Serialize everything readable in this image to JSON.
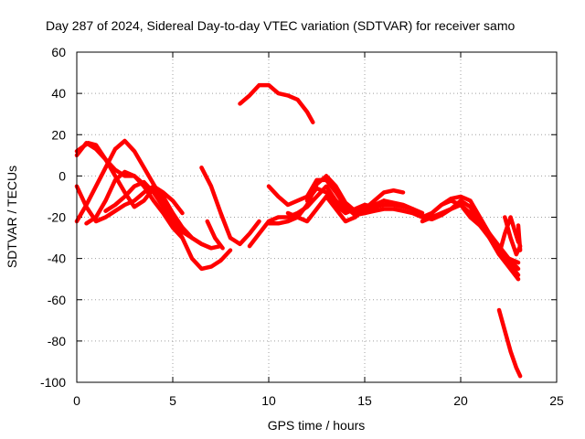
{
  "chart_data": {
    "type": "line",
    "title": "Day 287 of 2024, Sidereal Day-to-day VTEC variation (SDTVAR) for receiver samo",
    "xlabel": "GPS time / hours",
    "ylabel": "SDTVAR / TECUs",
    "xlim": [
      0,
      25
    ],
    "ylim": [
      -100,
      60
    ],
    "xticks": [
      0,
      5,
      10,
      15,
      20,
      25
    ],
    "yticks": [
      -100,
      -80,
      -60,
      -40,
      -20,
      0,
      20,
      40,
      60
    ],
    "xtick_labels": [
      "0",
      "5",
      "10",
      "15",
      "20",
      "25"
    ],
    "ytick_labels": [
      "-100",
      "-80",
      "-60",
      "-40",
      "-20",
      "0",
      "20",
      "40",
      "60"
    ],
    "grid": true,
    "color": "#ff0000",
    "series": [
      {
        "name": "track-1",
        "x": [
          0.0,
          0.5,
          1.0,
          1.5,
          2.0,
          2.5,
          3.0,
          3.5,
          4.0,
          4.5,
          5.0,
          5.5,
          6.0,
          6.5,
          7.0,
          7.5,
          8.0
        ],
        "y": [
          10,
          16,
          13,
          8,
          3,
          0,
          0,
          -4,
          -8,
          -14,
          -22,
          -30,
          -40,
          -45,
          -44,
          -41,
          -36
        ]
      },
      {
        "name": "track-2",
        "x": [
          0.0,
          0.5,
          1.0,
          1.5,
          2.0,
          2.5,
          3.0,
          3.5,
          4.0,
          4.5,
          5.0,
          5.5,
          6.0,
          6.5,
          7.0,
          7.5
        ],
        "y": [
          -22,
          -14,
          -5,
          4,
          13,
          17,
          12,
          4,
          -4,
          -12,
          -20,
          -25,
          -30,
          -33,
          -35,
          -34
        ]
      },
      {
        "name": "track-3",
        "x": [
          0.0,
          0.3,
          0.6,
          1.0,
          1.5,
          2.0,
          2.5,
          3.0,
          3.5,
          4.0,
          4.5,
          5.0,
          5.5,
          6.0,
          6.5,
          7.0
        ],
        "y": [
          12,
          14,
          16,
          15,
          8,
          0,
          -8,
          -15,
          -12,
          -6,
          -10,
          -18,
          -25,
          -30,
          -33,
          -35
        ]
      },
      {
        "name": "track-4",
        "x": [
          0.0,
          0.5,
          1.0,
          1.5,
          2.0,
          2.5,
          3.0,
          3.5,
          4.0,
          4.5,
          5.0,
          5.5
        ],
        "y": [
          -5,
          -15,
          -22,
          -20,
          -17,
          -14,
          -12,
          -8,
          -5,
          -8,
          -12,
          -18
        ]
      },
      {
        "name": "track-5",
        "x": [
          0.5,
          1.0,
          1.5,
          2.0,
          2.5,
          3.0,
          3.5,
          4.0,
          4.5,
          5.0,
          5.5
        ],
        "y": [
          -23,
          -20,
          -12,
          -2,
          2,
          0,
          -5,
          -12,
          -18,
          -25,
          -30
        ]
      },
      {
        "name": "track-6",
        "x": [
          1.5,
          2.0,
          2.5,
          3.0,
          3.5,
          4.0,
          4.5,
          5.0,
          5.5,
          6.0
        ],
        "y": [
          -17,
          -14,
          -10,
          -5,
          -3,
          -8,
          -15,
          -22,
          -27,
          -30
        ]
      },
      {
        "name": "track-7",
        "x": [
          6.5,
          7.0,
          7.5,
          8.0,
          8.5,
          9.0,
          9.5
        ],
        "y": [
          4,
          -5,
          -18,
          -30,
          -33,
          -28,
          -22
        ]
      },
      {
        "name": "track-8",
        "x": [
          6.8,
          7.2,
          7.6
        ],
        "y": [
          -22,
          -30,
          -35
        ]
      },
      {
        "name": "track-9",
        "x": [
          8.5,
          9.0,
          9.5,
          10.0,
          10.5,
          11.0,
          11.5,
          12.0,
          12.3
        ],
        "y": [
          35,
          39,
          44,
          44,
          40,
          39,
          37,
          31,
          26
        ]
      },
      {
        "name": "track-10",
        "x": [
          9.0,
          9.5,
          10.0,
          10.5,
          11.0,
          11.5,
          12.0,
          12.5,
          13.0,
          13.5,
          14.0,
          14.5,
          15.0,
          15.5,
          16.0,
          16.5,
          17.0,
          17.5,
          18.0
        ],
        "y": [
          -34,
          -28,
          -22,
          -20,
          -20,
          -18,
          -15,
          -10,
          -5,
          -12,
          -16,
          -18,
          -17,
          -14,
          -12,
          -13,
          -14,
          -16,
          -18
        ]
      },
      {
        "name": "track-11",
        "x": [
          10.0,
          10.5,
          11.0,
          11.5,
          12.0,
          12.5,
          13.0,
          13.5,
          14.0,
          14.5,
          15.0
        ],
        "y": [
          -23,
          -23,
          -22,
          -20,
          -14,
          -4,
          0,
          -5,
          -13,
          -17,
          -16
        ]
      },
      {
        "name": "track-12",
        "x": [
          10.0,
          10.5,
          11.0,
          11.5,
          12.0,
          12.5,
          13.0,
          13.5,
          14.0,
          14.5,
          15.0,
          15.5,
          16.0
        ],
        "y": [
          -5,
          -10,
          -14,
          -12,
          -10,
          -2,
          -2,
          -8,
          -15,
          -19,
          -18,
          -16,
          -12
        ]
      },
      {
        "name": "track-13",
        "x": [
          11.0,
          11.5,
          12.0,
          12.5,
          13.0,
          13.5,
          14.0,
          14.5,
          15.0,
          15.5,
          16.0,
          16.5,
          17.0
        ],
        "y": [
          -18,
          -20,
          -22,
          -16,
          -10,
          -16,
          -22,
          -20,
          -16,
          -12,
          -8,
          -7,
          -8
        ]
      },
      {
        "name": "track-14",
        "x": [
          12.0,
          12.5,
          13.0,
          13.5,
          14.0,
          14.5,
          15.0,
          15.5,
          16.0,
          16.5,
          17.0,
          17.5,
          18.0,
          18.5,
          19.0,
          19.5,
          20.0,
          20.5,
          21.0,
          21.5,
          22.0,
          22.5,
          23.0
        ],
        "y": [
          -12,
          -6,
          -8,
          -14,
          -18,
          -16,
          -14,
          -15,
          -14,
          -14,
          -15,
          -16,
          -20,
          -18,
          -14,
          -12,
          -14,
          -20,
          -24,
          -28,
          -35,
          -40,
          -45
        ]
      },
      {
        "name": "track-15",
        "x": [
          15.0,
          15.5,
          16.0,
          16.5,
          17.0,
          17.5,
          18.0,
          18.5,
          19.0,
          19.5,
          20.0,
          20.5,
          21.0,
          21.5,
          22.0,
          22.5,
          23.0
        ],
        "y": [
          -18,
          -17,
          -16,
          -16,
          -17,
          -18,
          -20,
          -21,
          -19,
          -16,
          -14,
          -18,
          -24,
          -30,
          -36,
          -42,
          -48
        ]
      },
      {
        "name": "track-16",
        "x": [
          18.0,
          18.5,
          19.0,
          19.5,
          20.0,
          20.5,
          21.0,
          21.5,
          22.0,
          22.5,
          23.0
        ],
        "y": [
          -22,
          -20,
          -18,
          -16,
          -12,
          -15,
          -22,
          -30,
          -38,
          -44,
          -50
        ]
      },
      {
        "name": "track-17",
        "x": [
          19.0,
          19.5,
          20.0,
          20.5,
          21.0,
          21.5,
          22.0,
          22.5,
          23.0
        ],
        "y": [
          -14,
          -11,
          -10,
          -12,
          -20,
          -28,
          -34,
          -40,
          -42
        ]
      },
      {
        "name": "track-18",
        "x": [
          21.5,
          22.0,
          22.3,
          22.6,
          23.0
        ],
        "y": [
          -30,
          -38,
          -28,
          -20,
          -32
        ]
      },
      {
        "name": "track-19",
        "x": [
          22.3,
          22.6,
          22.9,
          23.1
        ],
        "y": [
          -20,
          -30,
          -38,
          -34
        ]
      },
      {
        "name": "track-20",
        "x": [
          23.0,
          23.05,
          23.1
        ],
        "y": [
          -24,
          -30,
          -36
        ]
      },
      {
        "name": "track-21",
        "x": [
          22.0,
          22.3,
          22.6,
          22.9,
          23.1
        ],
        "y": [
          -65,
          -75,
          -85,
          -93,
          -97
        ]
      }
    ]
  }
}
